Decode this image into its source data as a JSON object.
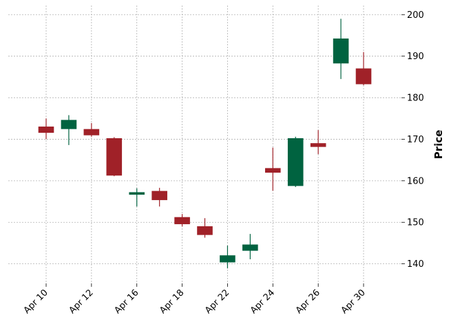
{
  "chart_data": {
    "type": "candlestick",
    "ylabel": "Price",
    "ylim": [
      135.3,
      202.2
    ],
    "y_ticks": [
      140,
      150,
      160,
      170,
      180,
      190,
      200
    ],
    "grid": true,
    "y_axis_side": "right",
    "x_ticks": [
      {
        "index": 0,
        "label": "Apr 10"
      },
      {
        "index": 2,
        "label": "Apr 12"
      },
      {
        "index": 4,
        "label": "Apr 16"
      },
      {
        "index": 6,
        "label": "Apr 18"
      },
      {
        "index": 8,
        "label": "Apr 22"
      },
      {
        "index": 10,
        "label": "Apr 24"
      },
      {
        "index": 12,
        "label": "Apr 26"
      },
      {
        "index": 14,
        "label": "Apr 30"
      }
    ],
    "up_color": "#006340",
    "down_color": "#a02128",
    "candles": [
      {
        "open": 173.0,
        "high": 175.0,
        "low": 170.0,
        "close": 171.6
      },
      {
        "open": 172.5,
        "high": 175.8,
        "low": 168.6,
        "close": 174.6
      },
      {
        "open": 172.4,
        "high": 173.9,
        "low": 170.6,
        "close": 171.0
      },
      {
        "open": 170.2,
        "high": 170.5,
        "low": 161.1,
        "close": 161.3
      },
      {
        "open": 156.7,
        "high": 158.2,
        "low": 153.8,
        "close": 157.2
      },
      {
        "open": 157.5,
        "high": 158.3,
        "low": 153.8,
        "close": 155.4
      },
      {
        "open": 151.2,
        "high": 152.0,
        "low": 149.0,
        "close": 149.6
      },
      {
        "open": 149.0,
        "high": 151.0,
        "low": 146.3,
        "close": 147.0
      },
      {
        "open": 140.4,
        "high": 144.4,
        "low": 138.9,
        "close": 142.0
      },
      {
        "open": 143.2,
        "high": 147.2,
        "low": 141.1,
        "close": 144.6
      },
      {
        "open": 163.0,
        "high": 168.0,
        "low": 157.6,
        "close": 162.0
      },
      {
        "open": 158.8,
        "high": 170.6,
        "low": 158.5,
        "close": 170.2
      },
      {
        "open": 169.0,
        "high": 172.2,
        "low": 166.4,
        "close": 168.2
      },
      {
        "open": 188.3,
        "high": 199.0,
        "low": 184.5,
        "close": 194.2
      },
      {
        "open": 187.0,
        "high": 191.0,
        "low": 183.0,
        "close": 183.3
      }
    ]
  }
}
